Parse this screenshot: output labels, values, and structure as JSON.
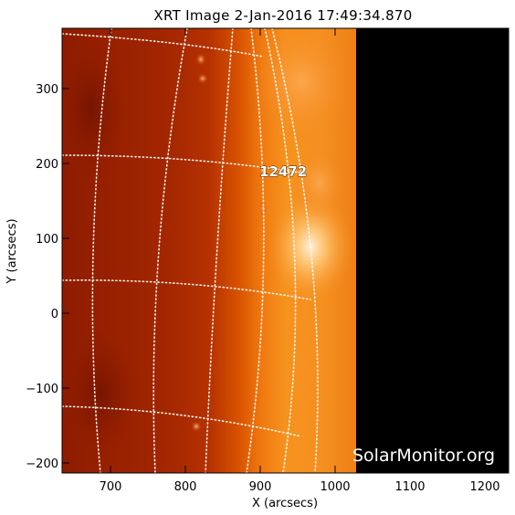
{
  "title": "XRT Image   2-Jan-2016  17:49:34.870",
  "xlabel": "X (arcsecs)",
  "ylabel": "Y (arcsecs)",
  "x_ticks": [
    "700",
    "800",
    "900",
    "1000",
    "1100",
    "1200"
  ],
  "y_ticks": [
    "300",
    "200",
    "100",
    "0",
    "−100",
    "−200"
  ],
  "active_region_label": "12472",
  "watermark": "SolarMonitor.org",
  "colors": {
    "disk_dark": "#9a1f00",
    "limb_bright": "#ffd9a0",
    "off_field": "#000000"
  }
}
